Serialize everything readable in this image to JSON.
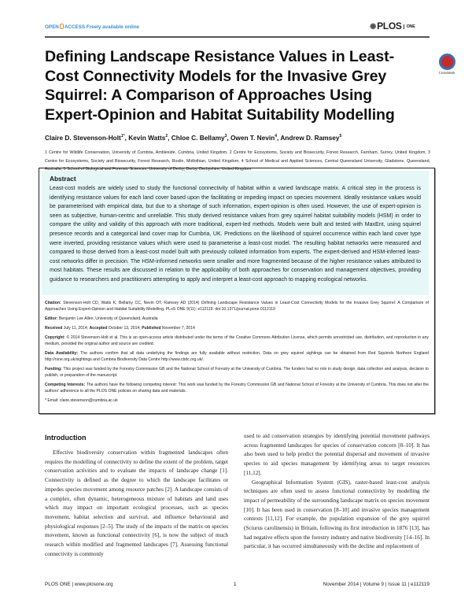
{
  "header": {
    "open_access": "OPEN",
    "access": "ACCESS",
    "freely": "Freely available online",
    "journal": "PLOS",
    "journal_sub": "ONE",
    "crossmark": "CrossMark"
  },
  "title": "Defining Landscape Resistance Values in Least-Cost Connectivity Models for the Invasive Grey Squirrel: A Comparison of Approaches Using Expert-Opinion and Habitat Suitability Modelling",
  "authors": [
    {
      "name": "Claire D. Stevenson-Holt",
      "sup": "1*"
    },
    {
      "name": "Kevin Watts",
      "sup": "2"
    },
    {
      "name": "Chloe C. Bellamy",
      "sup": "3"
    },
    {
      "name": "Owen T. Nevin",
      "sup": "4"
    },
    {
      "name": "Andrew D. Ramsey",
      "sup": "5"
    }
  ],
  "affiliations": "1 Centre for Wildlife Conservation, University of Cumbria, Ambleside, Cumbria, United Kingdom, 2 Centre for Ecosystems, Society and Biosecurity, Forest Research, Farnham, Surrey, United Kingdom, 3 Centre for Ecosystems, Society and Biosecurity, Forest Research, Roslin, Midlothian, United Kingdom, 4 School of Medical and Applied Sciences, Central Queensland University, Gladstone, Queensland, Australia, 5 School of Biological and Forensic Sciences, University of Derby, Derby, Derbyshire, United Kingdom",
  "abstract": {
    "heading": "Abstract",
    "text": "Least-cost models are widely used to study the functional connectivity of habitat within a varied landscape matrix. A critical step in the process is identifying resistance values for each land cover based upon the facilitating or impeding impact on species movement. Ideally resistance values would be parameterised with empirical data, but due to a shortage of such information, expert-opinion is often used. However, the use of expert-opinion is seen as subjective, human-centric and unreliable. This study derived resistance values from grey squirrel habitat suitability models (HSM) in order to compare the utility and validity of this approach with more traditional, expert-led methods. Models were built and tested with MaxEnt, using squirrel presence records and a categorical land cover map for Cumbria, UK. Predictions on the likelihood of squirrel occurrence within each land cover type were inverted, providing resistance values which were used to parameterise a least-cost model. The resulting habitat networks were measured and compared to those derived from a least-cost model built with previously collated information from experts. The expert-derived and HSM-inferred least-cost networks differ in precision. The HSM-informed networks were smaller and more fragmented because of the higher resistance values attributed to most habitats. These results are discussed in relation to the applicability of both approaches for conservation and management objectives, providing guidance to researchers and practitioners attempting to apply and interpret a least-cost approach to mapping ecological networks."
  },
  "meta": {
    "citation_label": "Citation:",
    "citation": "Stevenson-Holt CD, Watts K, Bellamy CC, Nevin OT, Ramsey AD (2014) Defining Landscape Resistance Values in Least-Cost Connectivity Models for the Invasive Grey Squirrel: A Comparison of Approaches Using Expert-Opinion and Habitat Suitability Modelling. PLoS ONE 9(11): e112119. doi:10.1371/journal.pone.0112119",
    "editor_label": "Editor:",
    "editor": "Benjamin Lee Allen, University of Queensland, Australia",
    "received_label": "Received",
    "received": "July 11, 2014;",
    "accepted_label": "Accepted",
    "accepted": "October 13, 2014;",
    "published_label": "Published",
    "published": "November 7, 2014",
    "copyright_label": "Copyright:",
    "copyright": "© 2014 Stevenson-Holt et al. This is an open-access article distributed under the terms of the Creative Commons Attribution License, which permits unrestricted use, distribution, and reproduction in any medium, provided the original author and source are credited.",
    "data_label": "Data Availability:",
    "data": "The authors confirm that all data underlying the findings are fully available without restriction. Data on grey squirrel sightings can be obtained from Red Squirrels Northern England http://rsne.org.uk/sightings and Cumbria Biodiversity Data Centre http://www.cbdc.org.uk/.",
    "funding_label": "Funding:",
    "funding": "This project was funded by the Forestry Commission GB and the National School of Forestry at the University of Cumbria. The funders had no role in study design, data collection and analysis, decision to publish, or preparation of the manuscript.",
    "competing_label": "Competing Interests:",
    "competing": "The authors have the following competing interest: This work was funded by the Forestry Commission GB and National School of Forestry at the University of Cumbria. This does not alter the authors' adherence to all the PLOS ONE policies on sharing data and materials.",
    "email": "* Email: claire.stevenson@cumbria.ac.uk"
  },
  "introduction": {
    "heading": "Introduction",
    "left": "Effective biodiversity conservation within fragmented landscapes often requires the modelling of connectivity to define the extent of the problem, target conservation activities and to evaluate the impacts of landscape change [1]. Connectivity is defined as the degree to which the landscape facilitates or impedes species movement among resource patches [2]. A landscape consists of a complex, often dynamic, heterogeneous mixture of habitats and land uses which may impact on important ecological processes, such as species movement, habitat selection and survival, and influence behavioural and physiological responses [2–5]. The study of the impacts of the matrix on species movement, known as functional connectivity [6], is now the subject of much research within modified and fragmented landscapes [7]. Assessing functional connectivity is commonly",
    "right1": "used to aid conservation strategies by identifying potential movement pathways across fragmented landscapes for species of conservation concern [8–10]. It has also been used to help predict the potential dispersal and movement of invasive species to aid species management by identifying areas to target resources [11,12].",
    "right2": "Geographical Information System (GIS), raster-based least-cost analysis techniques are often used to assess functional connectivity by modelling the impact of permeability of the surrounding landscape matrix on species movement [10]. It has been used in conservation [8–10] and invasive species management contexts [11,12]. For example, the population expansion of the grey squirrel (Sciurus carolinensis) in Britain, following its first introduction in 1876 [13], has had negative effects upon the forestry industry and native biodiversity [14–16]. In particular, it has occurred simultaneously with the decline and replacement of"
  },
  "footer": {
    "left": "PLOS ONE | www.plosone.org",
    "page": "1",
    "right": "November 2014 | Volume 9 | Issue 11 | e112119"
  }
}
